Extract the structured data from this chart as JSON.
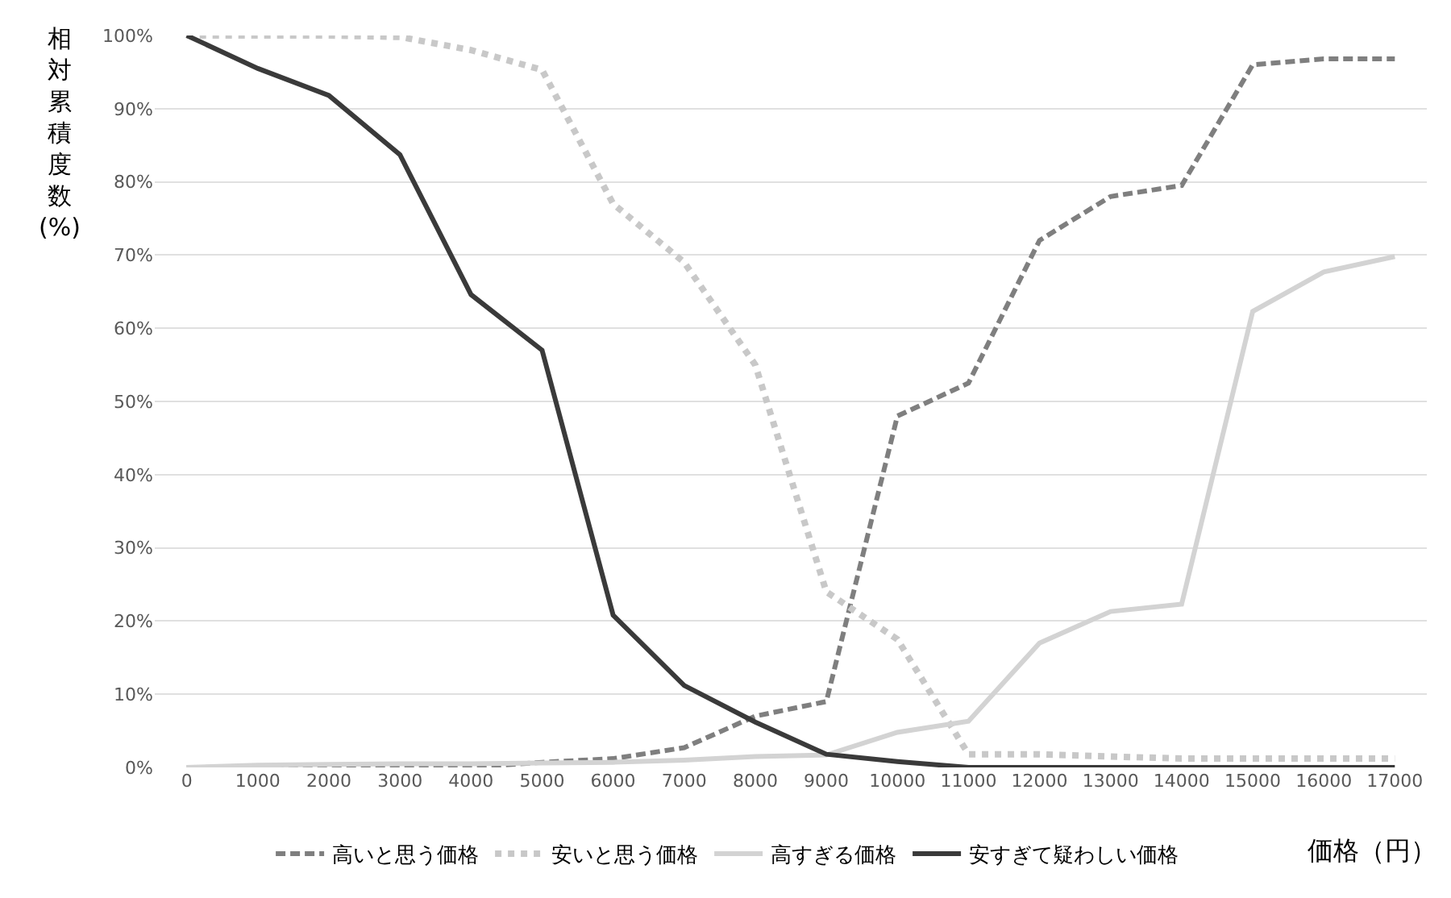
{
  "chart_data": {
    "type": "line",
    "xlabel": "価格（円）",
    "ylabel": "相対累積度数 (%)",
    "x": [
      0,
      1000,
      2000,
      3000,
      4000,
      5000,
      6000,
      7000,
      8000,
      9000,
      10000,
      11000,
      12000,
      13000,
      14000,
      15000,
      16000,
      17000
    ],
    "series": [
      {
        "name": "高いと思う価格",
        "color": "#7f7f7f",
        "line_style": "dashed",
        "values": [
          0,
          0,
          0,
          0,
          0,
          0.7,
          1.2,
          2.7,
          7,
          9,
          48,
          52.5,
          72,
          78,
          79.5,
          96,
          96.8,
          96.8
        ]
      },
      {
        "name": "安いと思う価格",
        "color": "#c8c8c8",
        "line_style": "dotted",
        "values": [
          100,
          100,
          100,
          99.8,
          98,
          95.3,
          77,
          69,
          55,
          24,
          17.5,
          1.8,
          1.8,
          1.5,
          1.2,
          1.2,
          1.2,
          1.2
        ]
      },
      {
        "name": "高すぎる価格",
        "color": "#d3d3d3",
        "line_style": "solid",
        "values": [
          0,
          0.3,
          0.4,
          0.5,
          0.5,
          0.6,
          0.7,
          1,
          1.5,
          1.7,
          4.8,
          6.3,
          17,
          21.3,
          22.3,
          62.3,
          67.7,
          69.8
        ]
      },
      {
        "name": "安すぎて疑わしい価格",
        "color": "#3a3a3a",
        "line_style": "solid",
        "values": [
          100,
          95.5,
          91.8,
          83.7,
          64.6,
          57,
          20.8,
          11.2,
          6.2,
          1.8,
          0.8,
          0,
          0,
          0,
          0,
          0,
          0,
          0
        ]
      }
    ],
    "xlim": [
      -450,
      17450
    ],
    "xticks": [
      0,
      1000,
      2000,
      3000,
      4000,
      5000,
      6000,
      7000,
      8000,
      9000,
      10000,
      11000,
      12000,
      13000,
      14000,
      15000,
      16000,
      17000
    ],
    "ylim": [
      0,
      100
    ],
    "yticks": [
      {
        "value": 0,
        "label": "0%"
      },
      {
        "value": 10,
        "label": "10%"
      },
      {
        "value": 20,
        "label": "20%"
      },
      {
        "value": 30,
        "label": "30%"
      },
      {
        "value": 40,
        "label": "40%"
      },
      {
        "value": 50,
        "label": "50%"
      },
      {
        "value": 60,
        "label": "60%"
      },
      {
        "value": 70,
        "label": "70%"
      },
      {
        "value": 80,
        "label": "80%"
      },
      {
        "value": 90,
        "label": "90%"
      },
      {
        "value": 100,
        "label": "100%"
      }
    ],
    "grid": "y",
    "legend": "bottom",
    "marker": "none"
  }
}
